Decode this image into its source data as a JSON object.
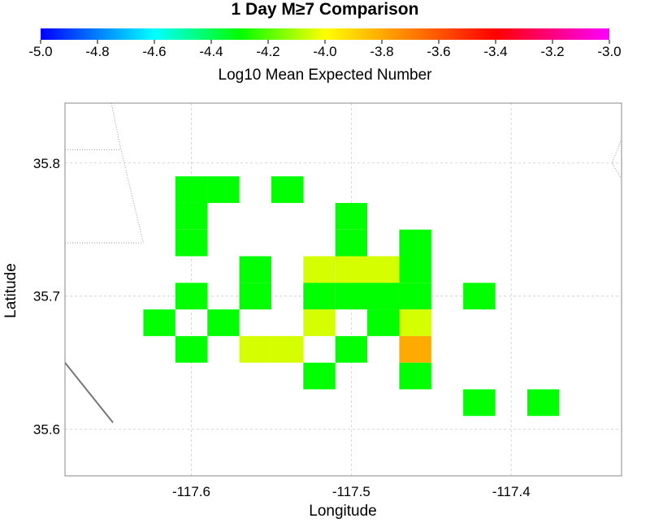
{
  "chart_data": {
    "type": "heatmap",
    "title": "1 Day M≥7 Comparison",
    "xlabel": "Longitude",
    "ylabel": "Latitude",
    "xlim": [
      -117.679,
      -117.331
    ],
    "ylim": [
      35.565,
      35.845
    ],
    "x_ticks": [
      -117.6,
      -117.5,
      -117.4
    ],
    "x_tick_labels": [
      "-117.6",
      "-117.5",
      "-117.4"
    ],
    "y_ticks": [
      35.6,
      35.7,
      35.8
    ],
    "y_tick_labels": [
      "35.6",
      "35.7",
      "35.8"
    ],
    "grid": true,
    "colorbar": {
      "label": "Log10 Mean Expected Number",
      "range": [
        -5.0,
        -3.0
      ],
      "tick_values": [
        -5.0,
        -4.8,
        -4.6,
        -4.4,
        -4.2,
        -4.0,
        -3.8,
        -3.6,
        -3.4,
        -3.2,
        -3.0
      ],
      "tick_labels": [
        "-5.0",
        "-4.8",
        "-4.6",
        "-4.4",
        "-4.2",
        "-4.0",
        "-3.8",
        "-3.6",
        "-3.4",
        "-3.2",
        "-3.0"
      ],
      "colors": [
        "#0000ff",
        "#00ffff",
        "#00ff00",
        "#ffff00",
        "#ff0000",
        "#ff00ff"
      ],
      "color_stops": [
        -5.0,
        -4.6,
        -4.3,
        -4.0,
        -3.4,
        -3.0
      ]
    },
    "cell_size_deg": 0.02,
    "cells": [
      {
        "lon": -117.6,
        "lat": 35.78,
        "value": -4.3
      },
      {
        "lon": -117.58,
        "lat": 35.78,
        "value": -4.3
      },
      {
        "lon": -117.54,
        "lat": 35.78,
        "value": -4.3
      },
      {
        "lon": -117.6,
        "lat": 35.76,
        "value": -4.3
      },
      {
        "lon": -117.5,
        "lat": 35.76,
        "value": -4.3
      },
      {
        "lon": -117.6,
        "lat": 35.74,
        "value": -4.3
      },
      {
        "lon": -117.5,
        "lat": 35.74,
        "value": -4.3
      },
      {
        "lon": -117.46,
        "lat": 35.74,
        "value": -4.3
      },
      {
        "lon": -117.56,
        "lat": 35.72,
        "value": -4.3
      },
      {
        "lon": -117.52,
        "lat": 35.72,
        "value": -4.05
      },
      {
        "lon": -117.5,
        "lat": 35.72,
        "value": -4.05
      },
      {
        "lon": -117.48,
        "lat": 35.72,
        "value": -4.05
      },
      {
        "lon": -117.46,
        "lat": 35.72,
        "value": -4.3
      },
      {
        "lon": -117.6,
        "lat": 35.7,
        "value": -4.3
      },
      {
        "lon": -117.56,
        "lat": 35.7,
        "value": -4.3
      },
      {
        "lon": -117.52,
        "lat": 35.7,
        "value": -4.3
      },
      {
        "lon": -117.5,
        "lat": 35.7,
        "value": -4.3
      },
      {
        "lon": -117.48,
        "lat": 35.7,
        "value": -4.3
      },
      {
        "lon": -117.46,
        "lat": 35.7,
        "value": -4.3
      },
      {
        "lon": -117.42,
        "lat": 35.7,
        "value": -4.3
      },
      {
        "lon": -117.62,
        "lat": 35.68,
        "value": -4.3
      },
      {
        "lon": -117.58,
        "lat": 35.68,
        "value": -4.3
      },
      {
        "lon": -117.52,
        "lat": 35.68,
        "value": -4.05
      },
      {
        "lon": -117.48,
        "lat": 35.68,
        "value": -4.3
      },
      {
        "lon": -117.46,
        "lat": 35.68,
        "value": -4.05
      },
      {
        "lon": -117.6,
        "lat": 35.66,
        "value": -4.3
      },
      {
        "lon": -117.56,
        "lat": 35.66,
        "value": -4.05
      },
      {
        "lon": -117.54,
        "lat": 35.66,
        "value": -4.05
      },
      {
        "lon": -117.5,
        "lat": 35.66,
        "value": -4.3
      },
      {
        "lon": -117.46,
        "lat": 35.66,
        "value": -3.8
      },
      {
        "lon": -117.52,
        "lat": 35.64,
        "value": -4.3
      },
      {
        "lon": -117.46,
        "lat": 35.64,
        "value": -4.3
      },
      {
        "lon": -117.42,
        "lat": 35.62,
        "value": -4.3
      },
      {
        "lon": -117.38,
        "lat": 35.62,
        "value": -4.3
      }
    ],
    "map_lines": [
      {
        "name": "boundary-left-upper",
        "color": "#999999",
        "dotted": true,
        "points": [
          [
            -117.679,
            35.81
          ],
          [
            -117.644,
            35.81
          ]
        ]
      },
      {
        "name": "boundary-left-vertical",
        "color": "#999999",
        "dotted": true,
        "points": [
          [
            -117.65,
            35.845
          ],
          [
            -117.644,
            35.81
          ],
          [
            -117.63,
            35.74
          ]
        ]
      },
      {
        "name": "boundary-left-lower",
        "color": "#999999",
        "dotted": true,
        "points": [
          [
            -117.679,
            35.74
          ],
          [
            -117.63,
            35.74
          ]
        ]
      },
      {
        "name": "fault-segment",
        "color": "#777777",
        "dotted": false,
        "points": [
          [
            -117.679,
            35.65
          ],
          [
            -117.649,
            35.605
          ]
        ]
      },
      {
        "name": "boundary-right",
        "color": "#999999",
        "dotted": true,
        "points": [
          [
            -117.331,
            35.818
          ],
          [
            -117.337,
            35.8
          ],
          [
            -117.331,
            35.788
          ]
        ]
      }
    ]
  }
}
